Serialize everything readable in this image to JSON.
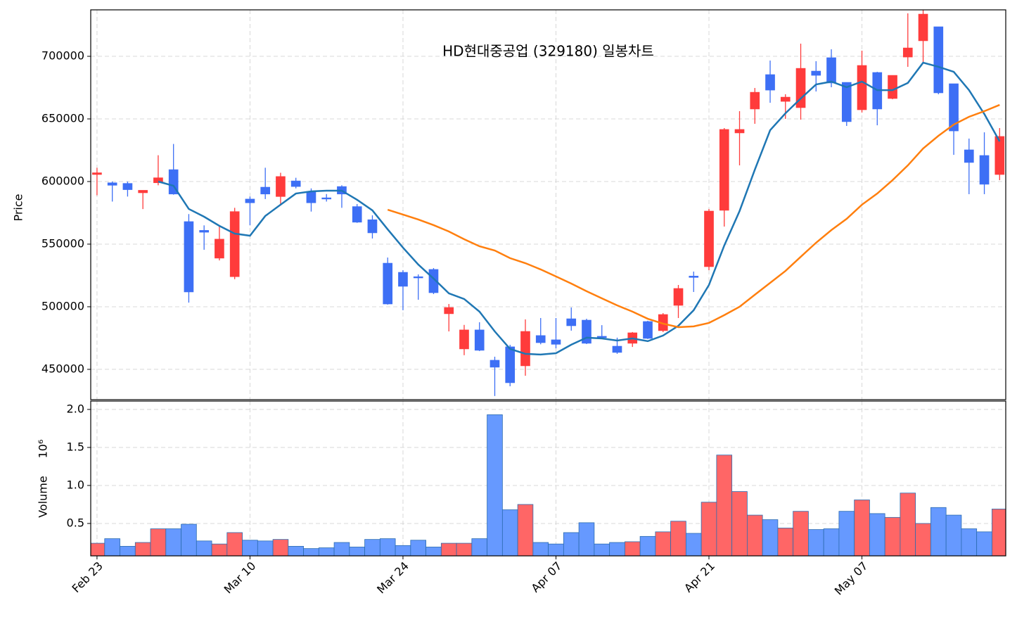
{
  "chart_data": [
    {
      "type": "candlestick",
      "title": "HD현대중공업 (329180) 일봉차트",
      "ylabel": "Price",
      "open": [
        605600,
        599000,
        598500,
        591000,
        599000,
        609500,
        568000,
        561000,
        538800,
        524000,
        586000,
        595500,
        588000,
        600500,
        592000,
        587000,
        596000,
        580000,
        569500,
        534800,
        527500,
        524000,
        529800,
        494400,
        466300,
        481500,
        457300,
        468000,
        452800,
        477000,
        473600,
        490400,
        489300,
        476400,
        468500,
        470800,
        488200,
        480900,
        501100,
        524500,
        532000,
        577000,
        638800,
        657900,
        685400,
        664000,
        659000,
        688200,
        698900,
        679200,
        657300,
        687100,
        666300,
        699400,
        712400,
        723600,
        678100,
        625300,
        620800,
        605600
      ],
      "high": [
        611000,
        600000,
        600000,
        593000,
        621000,
        630000,
        574000,
        565000,
        564000,
        579000,
        588000,
        611000,
        607000,
        603000,
        594500,
        590000,
        597000,
        582000,
        573000,
        539300,
        529200,
        525800,
        530900,
        502200,
        485500,
        487600,
        460100,
        469600,
        489900,
        491000,
        491000,
        499400,
        490400,
        485300,
        475300,
        479800,
        488800,
        494900,
        517400,
        528100,
        578100,
        642700,
        656200,
        674700,
        696600,
        669700,
        710100,
        696100,
        705600,
        679200,
        704500,
        687600,
        684800,
        734300,
        745000,
        723600,
        678100,
        634300,
        639300,
        642700
      ],
      "low": [
        589000,
        584000,
        588000,
        578000,
        597000,
        589500,
        503300,
        545500,
        537000,
        522000,
        565000,
        586000,
        582000,
        594500,
        576000,
        584000,
        579000,
        567000,
        554500,
        501700,
        497200,
        505600,
        510100,
        480300,
        461300,
        464600,
        428700,
        436500,
        444900,
        470000,
        466800,
        480900,
        470200,
        474200,
        462400,
        467900,
        474200,
        479800,
        491000,
        511800,
        529200,
        564000,
        612900,
        646100,
        662900,
        650000,
        649400,
        671900,
        675300,
        644400,
        655100,
        644900,
        665700,
        691600,
        695500,
        669700,
        621300,
        589900,
        589900,
        601100
      ],
      "close": [
        607000,
        597000,
        593500,
        593000,
        603000,
        590000,
        511800,
        559500,
        554000,
        576000,
        583000,
        590000,
        604000,
        596000,
        583000,
        586000,
        590000,
        567500,
        559000,
        502200,
        516300,
        523000,
        511200,
        499400,
        481500,
        465200,
        451700,
        439300,
        480300,
        471300,
        470000,
        484800,
        470800,
        475300,
        463500,
        479200,
        474700,
        493800,
        514600,
        523400,
        576400,
        641600,
        641600,
        671300,
        673000,
        667400,
        690400,
        684800,
        678700,
        647800,
        692700,
        657900,
        684800,
        706700,
        733700,
        670800,
        640400,
        615200,
        597800,
        636000
      ],
      "up_color": "#ff3b3b",
      "down_color": "#3d6ff5",
      "series": [
        {
          "color": "#1f77b4",
          "values": [
            null,
            null,
            null,
            null,
            600000,
            596600,
            578100,
            571900,
            564600,
            558400,
            556700,
            572500,
            581500,
            590400,
            592100,
            592700,
            592700,
            585400,
            577000,
            561800,
            547200,
            533700,
            522500,
            510700,
            506200,
            496100,
            480300,
            466300,
            462400,
            461800,
            462900,
            469700,
            475300,
            474700,
            473000,
            474700,
            472500,
            477000,
            484800,
            497200,
            517400,
            548900,
            576400,
            609500,
            641000,
            654500,
            666300,
            677500,
            679800,
            675300,
            679800,
            673000,
            673000,
            678700,
            694900,
            691600,
            687600,
            673000,
            653900,
            632000
          ]
        },
        {
          "color": "#ff7f0e",
          "values": [
            null,
            null,
            null,
            null,
            null,
            null,
            null,
            null,
            null,
            null,
            null,
            null,
            null,
            null,
            null,
            null,
            null,
            null,
            null,
            577500,
            573600,
            569700,
            565200,
            560100,
            553900,
            548300,
            544900,
            538800,
            534800,
            529800,
            524200,
            518500,
            512400,
            506700,
            501100,
            496100,
            490400,
            486500,
            483700,
            484300,
            487100,
            493300,
            500000,
            509600,
            519100,
            528600,
            539900,
            551100,
            561200,
            570200,
            581500,
            590400,
            601100,
            612900,
            626400,
            636500,
            645500,
            651700,
            656200,
            661200
          ]
        }
      ],
      "ylim": [
        425800,
        737100
      ],
      "yticks": [
        450000,
        500000,
        550000,
        600000,
        650000,
        700000
      ],
      "grid": true
    },
    {
      "type": "bar",
      "ylabel": "Volume",
      "offset_text": "10⁶",
      "categories": [
        "Feb 23",
        null,
        null,
        null,
        null,
        null,
        null,
        null,
        null,
        null,
        "Mar 10",
        null,
        null,
        null,
        null,
        null,
        null,
        null,
        null,
        null,
        "Mar 24",
        null,
        null,
        null,
        null,
        null,
        null,
        null,
        null,
        null,
        "Apr 07",
        null,
        null,
        null,
        null,
        null,
        null,
        null,
        null,
        null,
        "Apr 21",
        null,
        null,
        null,
        null,
        null,
        null,
        null,
        null,
        null,
        "May 07",
        null,
        null,
        null,
        null,
        null,
        null,
        null,
        null,
        null
      ],
      "values": [
        0.24,
        0.3,
        0.2,
        0.25,
        0.43,
        0.43,
        0.49,
        0.27,
        0.23,
        0.38,
        0.28,
        0.27,
        0.29,
        0.2,
        0.17,
        0.18,
        0.25,
        0.19,
        0.29,
        0.3,
        0.21,
        0.28,
        0.19,
        0.24,
        0.24,
        0.3,
        1.93,
        0.68,
        0.75,
        0.25,
        0.23,
        0.38,
        0.51,
        0.23,
        0.25,
        0.26,
        0.33,
        0.39,
        0.53,
        0.37,
        0.78,
        1.4,
        0.92,
        0.61,
        0.55,
        0.44,
        0.66,
        0.42,
        0.43,
        0.66,
        0.81,
        0.63,
        0.58,
        0.9,
        0.5,
        0.71,
        0.61,
        0.43,
        0.39,
        0.69
      ],
      "up_color": "#ff6666",
      "down_color": "#6699ff",
      "edge_color": "#2b6cb0",
      "ylim": [
        0.074,
        2.11
      ],
      "yticks": [
        0.5,
        {
          "value": 1,
          "label": "1.0"
        },
        1.5,
        {
          "value": 2,
          "label": "2.0"
        }
      ],
      "grid": true
    }
  ]
}
